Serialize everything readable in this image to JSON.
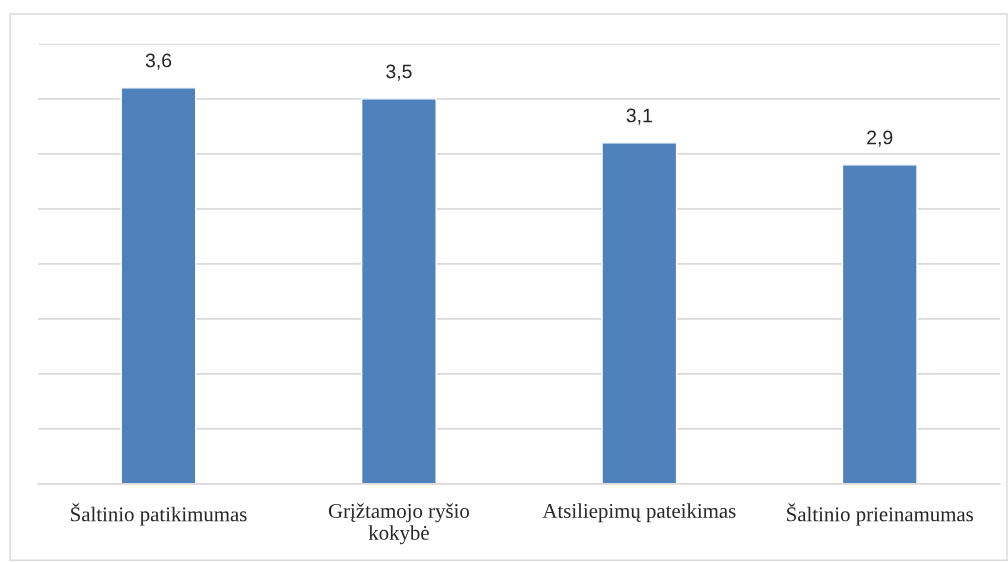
{
  "chart_data": {
    "type": "bar",
    "categories": [
      "Šaltinio patikimumas",
      "Grįžtamojo ryšio\nkokybė",
      "Atsiliepimų pateikimas",
      "Šaltinio prieinamumas"
    ],
    "values": [
      3.6,
      3.5,
      3.1,
      2.9
    ],
    "value_labels": [
      "3,6",
      "3,5",
      "3,1",
      "2,9"
    ],
    "color": "#4f81bd",
    "ylim": [
      0,
      4
    ],
    "yticks": [
      {
        "value": 0,
        "label": null
      },
      {
        "value": 0.5,
        "label": null
      },
      {
        "value": 1,
        "label": null
      },
      {
        "value": 1.5,
        "label": null
      },
      {
        "value": 2,
        "label": null
      },
      {
        "value": 2.5,
        "label": null
      },
      {
        "value": 3,
        "label": null
      },
      {
        "value": 3.5,
        "label": null
      },
      {
        "value": 4,
        "label": null
      }
    ],
    "grid": "y",
    "tick_labels": "x"
  }
}
